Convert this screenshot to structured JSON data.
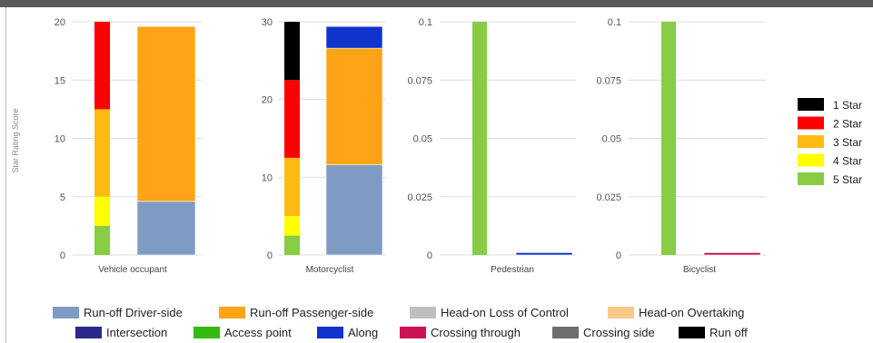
{
  "chart_data": {
    "type": "bar",
    "stacked": true,
    "ylabel": "Star Rating Score",
    "grid": true,
    "star_legend": {
      "placement": "right",
      "items": [
        {
          "label": "1 Star",
          "color": "#000000"
        },
        {
          "label": "2 Star",
          "color": "#ff0000"
        },
        {
          "label": "3 Star",
          "color": "#ffbb11"
        },
        {
          "label": "4 Star",
          "color": "#ffff00"
        },
        {
          "label": "5 Star",
          "color": "#88cc44"
        }
      ]
    },
    "crash_legend": {
      "placement": "bottom",
      "items": [
        {
          "label": "Run-off Driver-side",
          "color": "#7e9bc4"
        },
        {
          "label": "Run-off Passenger-side",
          "color": "#ffa317"
        },
        {
          "label": "Head-on Loss of Control",
          "color": "#bfbfbf"
        },
        {
          "label": "Head-on Overtaking",
          "color": "#f7c98a"
        },
        {
          "label": "Intersection",
          "color": "#2a2a8a"
        },
        {
          "label": "Access point",
          "color": "#33bb11"
        },
        {
          "label": "Along",
          "color": "#1133cc"
        },
        {
          "label": "Crossing through",
          "color": "#cc1155"
        },
        {
          "label": "Crossing side",
          "color": "#6e6e6e"
        },
        {
          "label": "Run off",
          "color": "#000000"
        }
      ]
    },
    "panels": [
      {
        "category": "Vehicle occupant",
        "ylim": [
          0,
          20
        ],
        "ticks": [
          "0",
          "5",
          "10",
          "15",
          "20"
        ],
        "star_band": [
          {
            "band": "5 Star",
            "from": 0,
            "to": 2.5
          },
          {
            "band": "4 Star",
            "from": 2.5,
            "to": 5.0
          },
          {
            "band": "3 Star",
            "from": 5.0,
            "to": 12.5
          },
          {
            "band": "2 Star",
            "from": 12.5,
            "to": 20
          }
        ],
        "crash_stack": [
          {
            "type": "Run-off Driver-side",
            "value": 4.6
          },
          {
            "type": "Run-off Passenger-side",
            "value": 15.0
          }
        ]
      },
      {
        "category": "Motorcyclist",
        "ylim": [
          0,
          30
        ],
        "ticks": [
          "0",
          "10",
          "20",
          "30"
        ],
        "star_band": [
          {
            "band": "5 Star",
            "from": 0,
            "to": 2.5
          },
          {
            "band": "4 Star",
            "from": 2.5,
            "to": 5.0
          },
          {
            "band": "3 Star",
            "from": 5.0,
            "to": 12.5
          },
          {
            "band": "2 Star",
            "from": 12.5,
            "to": 22.5
          },
          {
            "band": "1 Star",
            "from": 22.5,
            "to": 30
          }
        ],
        "crash_stack": [
          {
            "type": "Run-off Driver-side",
            "value": 11.6
          },
          {
            "type": "Run-off Passenger-side",
            "value": 15.0
          },
          {
            "type": "Along",
            "value": 2.8
          }
        ]
      },
      {
        "category": "Pedestrian",
        "ylim": [
          0,
          0.1
        ],
        "ticks": [
          "0",
          "0.025",
          "0.05",
          "0.075",
          "0.1"
        ],
        "star_band": [
          {
            "band": "5 Star",
            "from": 0,
            "to": 0.1
          }
        ],
        "crash_stack": [
          {
            "type": "Along",
            "value": 0.001
          }
        ]
      },
      {
        "category": "Bicyclist",
        "ylim": [
          0,
          0.1
        ],
        "ticks": [
          "0",
          "0.025",
          "0.05",
          "0.075",
          "0.1"
        ],
        "star_band": [
          {
            "band": "5 Star",
            "from": 0,
            "to": 0.1
          }
        ],
        "crash_stack": [
          {
            "type": "Crossing through",
            "value": 0.001
          }
        ]
      }
    ]
  }
}
